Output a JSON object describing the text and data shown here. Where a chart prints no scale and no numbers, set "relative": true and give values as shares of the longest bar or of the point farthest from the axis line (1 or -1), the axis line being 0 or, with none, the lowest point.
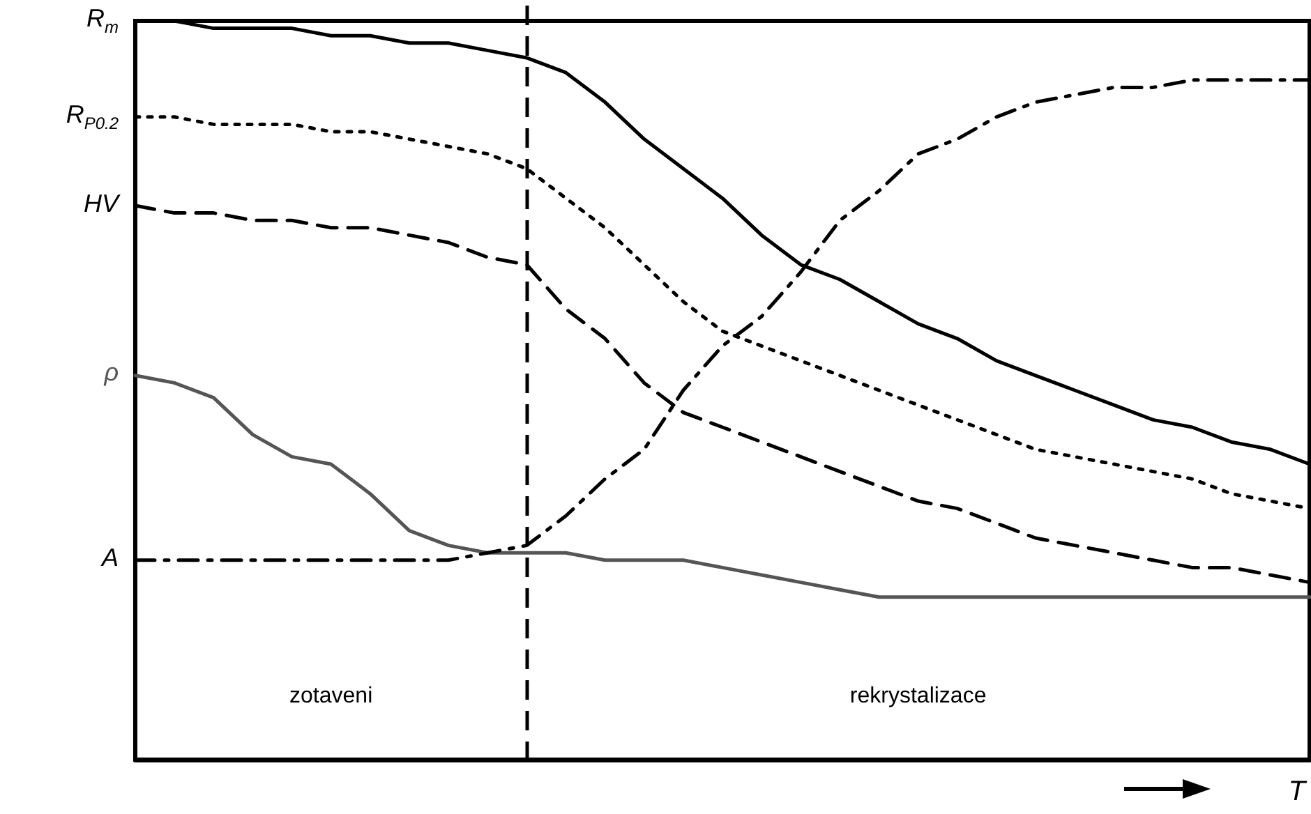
{
  "chart_data": {
    "type": "line",
    "relative": true,
    "xlabel": "T",
    "tick_labels": false,
    "categories": [
      null,
      null,
      null,
      null,
      null,
      null,
      null,
      null,
      null,
      null,
      null,
      null,
      null,
      null,
      null,
      null,
      null,
      null,
      null,
      null,
      null,
      null,
      null,
      null,
      null,
      null,
      null,
      null,
      null,
      null,
      null
    ],
    "series": [
      {
        "name": "R$_{m}$",
        "color": "#000000",
        "line_style": "solid",
        "values": [
          1.0,
          1.0,
          0.99,
          0.99,
          0.99,
          0.98,
          0.98,
          0.97,
          0.97,
          0.96,
          0.95,
          0.93,
          0.89,
          0.84,
          0.8,
          0.76,
          0.71,
          0.67,
          0.65,
          0.62,
          0.59,
          0.57,
          0.54,
          0.52,
          0.5,
          0.48,
          0.46,
          0.45,
          0.43,
          0.42,
          0.4
        ]
      },
      {
        "name": "R$_{P0.2}$",
        "color": "#000000",
        "line_style": "dotted",
        "values": [
          0.87,
          0.87,
          0.86,
          0.86,
          0.86,
          0.85,
          0.85,
          0.84,
          0.83,
          0.82,
          0.8,
          0.76,
          0.72,
          0.67,
          0.62,
          0.58,
          0.56,
          0.54,
          0.52,
          0.5,
          0.48,
          0.46,
          0.44,
          0.42,
          0.41,
          0.4,
          0.39,
          0.38,
          0.36,
          0.35,
          0.34
        ]
      },
      {
        "name": "HV",
        "color": "#000000",
        "line_style": "dashed",
        "values": [
          0.75,
          0.74,
          0.74,
          0.73,
          0.73,
          0.72,
          0.72,
          0.71,
          0.7,
          0.68,
          0.67,
          0.61,
          0.57,
          0.51,
          0.47,
          0.45,
          0.43,
          0.41,
          0.39,
          0.37,
          0.35,
          0.34,
          0.32,
          0.3,
          0.29,
          0.28,
          0.27,
          0.26,
          0.26,
          0.25,
          0.24
        ]
      },
      {
        "name": "ρ",
        "color": "#555555",
        "line_style": "solid",
        "values": [
          0.52,
          0.51,
          0.49,
          0.44,
          0.41,
          0.4,
          0.36,
          0.31,
          0.29,
          0.28,
          0.28,
          0.28,
          0.27,
          0.27,
          0.27,
          0.26,
          0.25,
          0.24,
          0.23,
          0.22,
          0.22,
          0.22,
          0.22,
          0.22,
          0.22,
          0.22,
          0.22,
          0.22,
          0.22,
          0.22,
          0.22
        ]
      },
      {
        "name": "A",
        "color": "#000000",
        "line_style": "dashdot",
        "values": [
          0.27,
          0.27,
          0.27,
          0.27,
          0.27,
          0.27,
          0.27,
          0.27,
          0.27,
          0.28,
          0.29,
          0.33,
          0.38,
          0.42,
          0.5,
          0.56,
          0.6,
          0.66,
          0.73,
          0.77,
          0.82,
          0.84,
          0.87,
          0.89,
          0.9,
          0.91,
          0.91,
          0.92,
          0.92,
          0.92,
          0.92
        ]
      }
    ],
    "annotations": [
      "zotaveni",
      "rekrystalizace"
    ]
  }
}
